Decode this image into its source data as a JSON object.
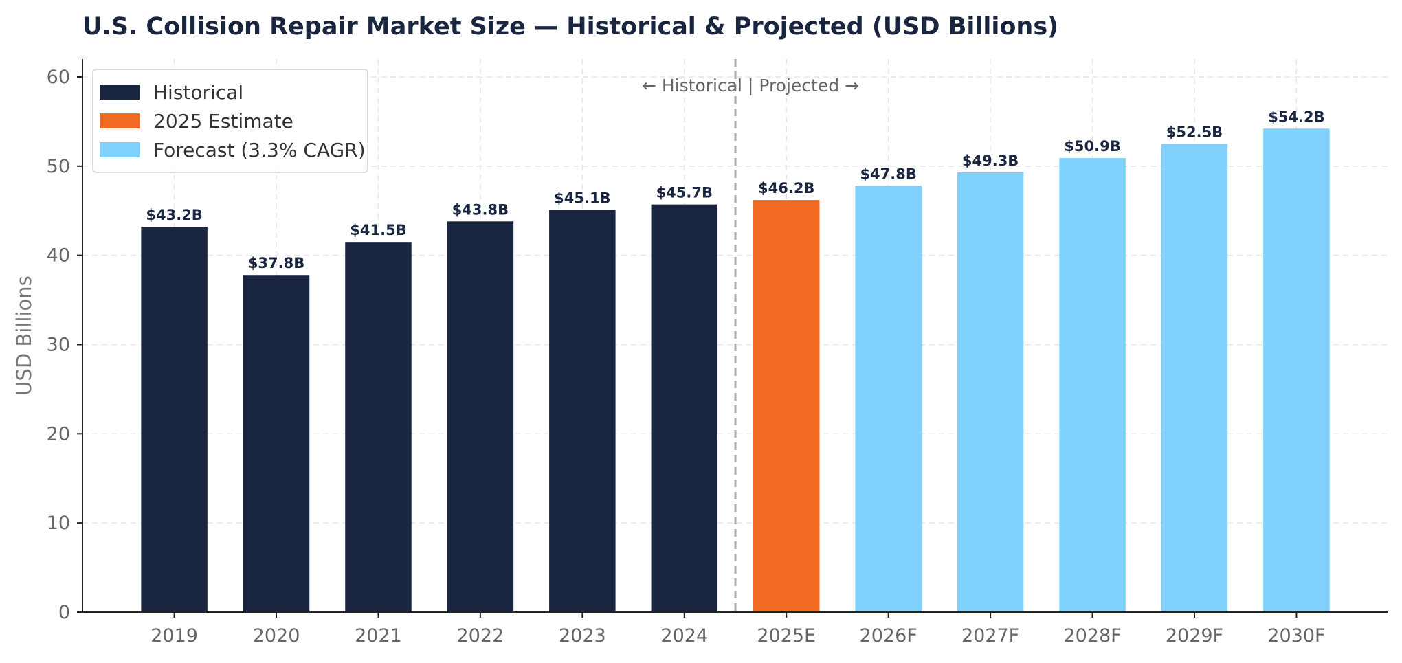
{
  "chart_data": {
    "type": "bar",
    "title": "U.S. Collision Repair Market Size — Historical & Projected (USD Billions)",
    "xlabel": "",
    "ylabel": "USD Billions",
    "ylim": [
      0,
      62
    ],
    "yticks": [
      0,
      10,
      20,
      30,
      40,
      50,
      60
    ],
    "grid": true,
    "legend_placement": "top-left",
    "categories": [
      "2019",
      "2020",
      "2021",
      "2022",
      "2023",
      "2024",
      "2025E",
      "2026F",
      "2027F",
      "2028F",
      "2029F",
      "2030F"
    ],
    "values": [
      43.2,
      37.8,
      41.5,
      43.8,
      45.1,
      45.7,
      46.2,
      47.8,
      49.3,
      50.9,
      52.5,
      54.2
    ],
    "value_labels": [
      "$43.2B",
      "$37.8B",
      "$41.5B",
      "$43.8B",
      "$45.1B",
      "$45.7B",
      "$46.2B",
      "$47.8B",
      "$49.3B",
      "$50.9B",
      "$52.5B",
      "$54.2B"
    ],
    "bar_groups": [
      "historical",
      "historical",
      "historical",
      "historical",
      "historical",
      "historical",
      "estimate",
      "forecast",
      "forecast",
      "forecast",
      "forecast",
      "forecast"
    ],
    "series": [
      {
        "key": "historical",
        "name": "Historical",
        "color": "#1a2540"
      },
      {
        "key": "estimate",
        "name": "2025 Estimate",
        "color": "#f06a22"
      },
      {
        "key": "forecast",
        "name": "Forecast (3.3% CAGR)",
        "color": "#80d0fc"
      }
    ],
    "annotations": {
      "divider_text": "← Historical   |   Projected →",
      "divider_after_category": "2024"
    }
  }
}
